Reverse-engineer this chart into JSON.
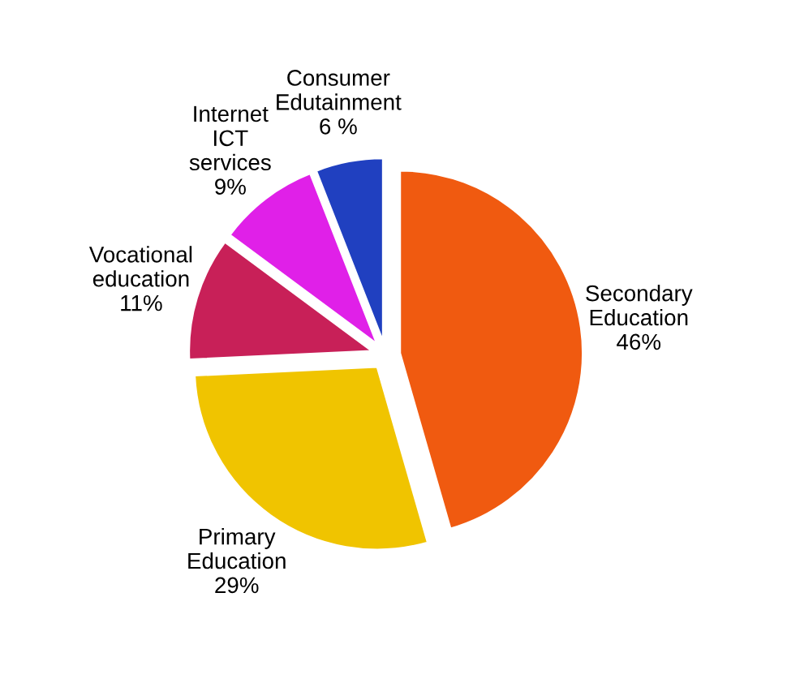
{
  "chart_data": {
    "type": "pie",
    "categories": [
      "Secondary Education",
      "Primary Education",
      "Vocational education",
      "Internet ICT services",
      "Consumer Edutainment"
    ],
    "values": [
      46,
      29,
      11,
      9,
      6
    ],
    "value_labels": [
      "46%",
      "29%",
      "11%",
      "9%",
      "6 %"
    ],
    "colors": [
      "#f05a10",
      "#f0c400",
      "#c82058",
      "#e020e8",
      "#2040c0"
    ],
    "legend": false
  }
}
